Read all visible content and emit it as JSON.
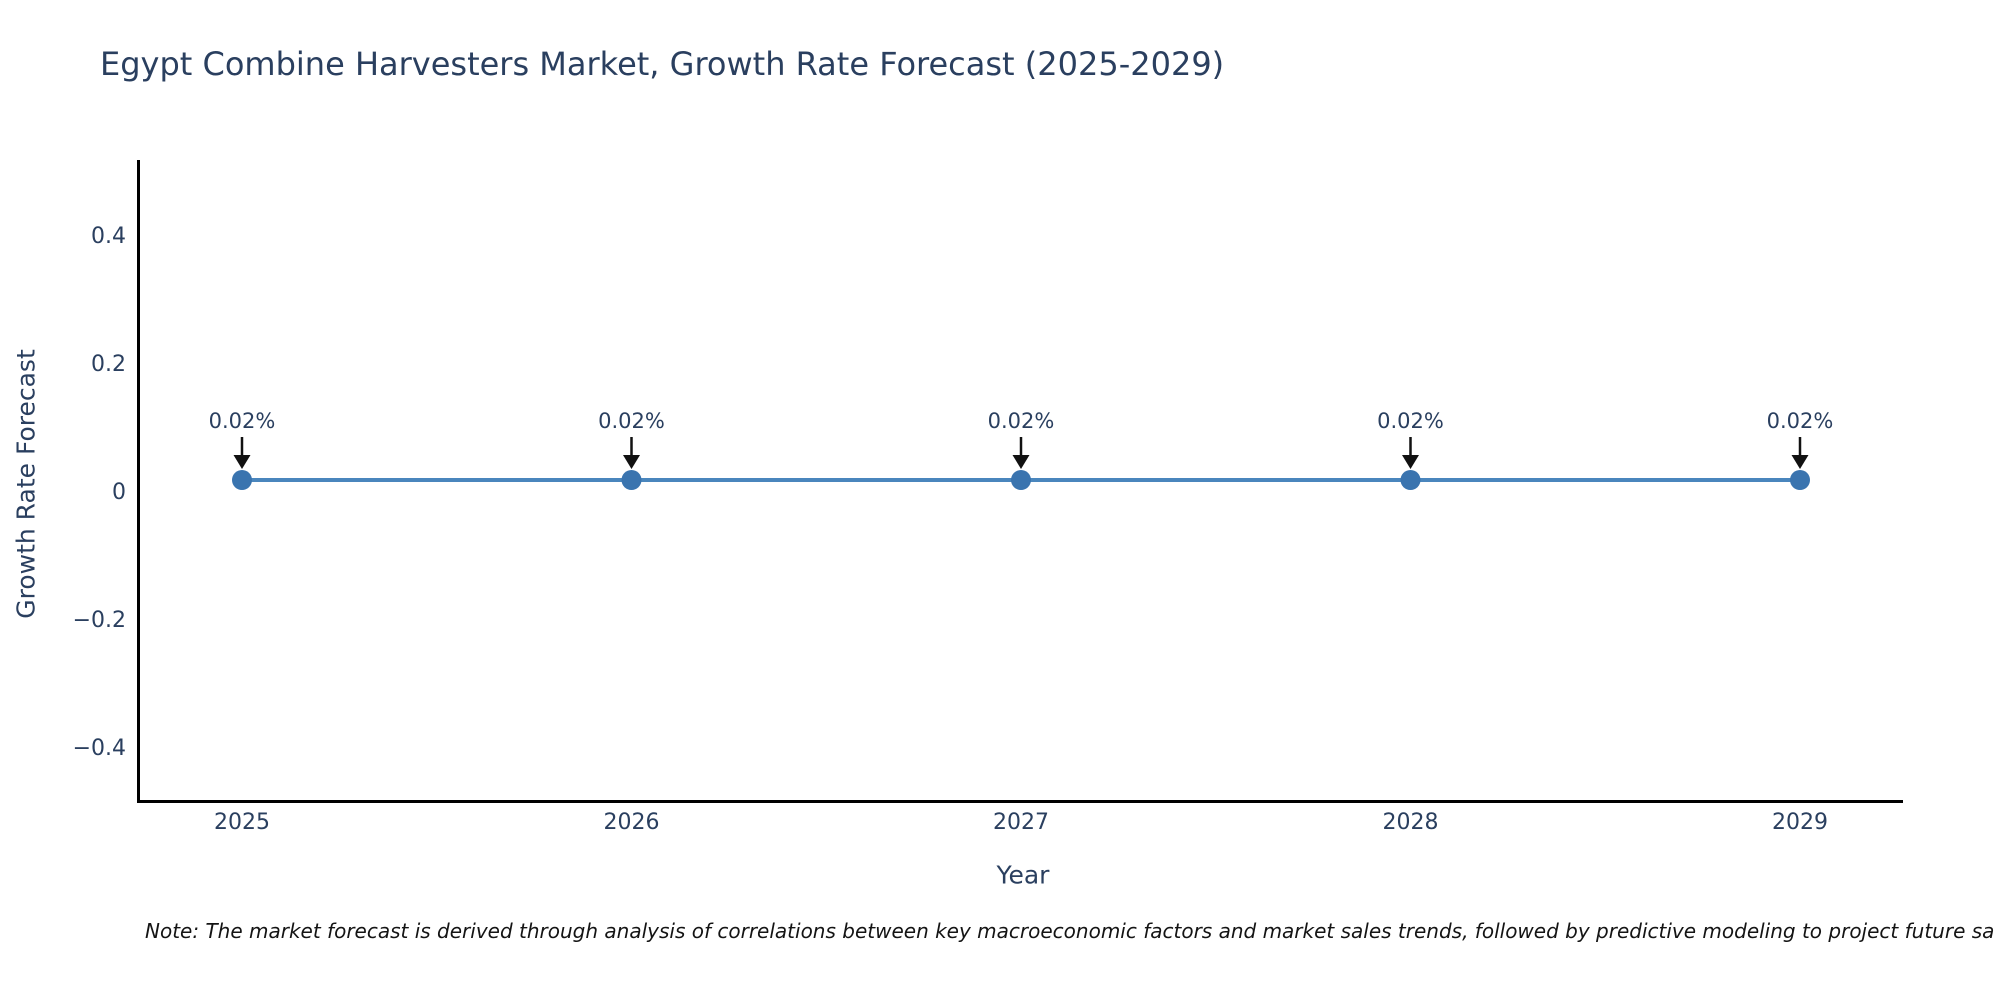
{
  "title": "Egypt Combine Harvesters Market, Growth Rate Forecast (2025-2029)",
  "note": "Note: The market forecast is derived through analysis of correlations between key macroeconomic factors and market sales trends, followed by predictive modeling to project future sa",
  "chart_data": {
    "type": "line",
    "title": "Egypt Combine Harvesters Market, Growth Rate Forecast (2025-2029)",
    "xlabel": "Year",
    "ylabel": "Growth Rate Forecast",
    "categories": [
      "2025",
      "2026",
      "2027",
      "2028",
      "2029"
    ],
    "series": [
      {
        "name": "Growth Rate Forecast",
        "values": [
          0.02,
          0.02,
          0.02,
          0.02,
          0.02
        ]
      }
    ],
    "point_labels": [
      "0.02%",
      "0.02%",
      "0.02%",
      "0.02%",
      "0.02%"
    ],
    "yticks": [
      0.4,
      0.2,
      0,
      -0.2,
      -0.4
    ],
    "ytick_labels": [
      "0.4",
      "0.2",
      "0",
      "−0.2",
      "−0.4"
    ],
    "ylim": [
      -0.48,
      0.52
    ],
    "grid": false,
    "legend": "none",
    "colors": {
      "line": "#4a86bd",
      "marker": "#3a74af",
      "annotation_arrow": "#111111",
      "text": "#2a3f5f",
      "axis_line": "#000000",
      "note_text": "#141414",
      "background": "#ffffff"
    }
  }
}
